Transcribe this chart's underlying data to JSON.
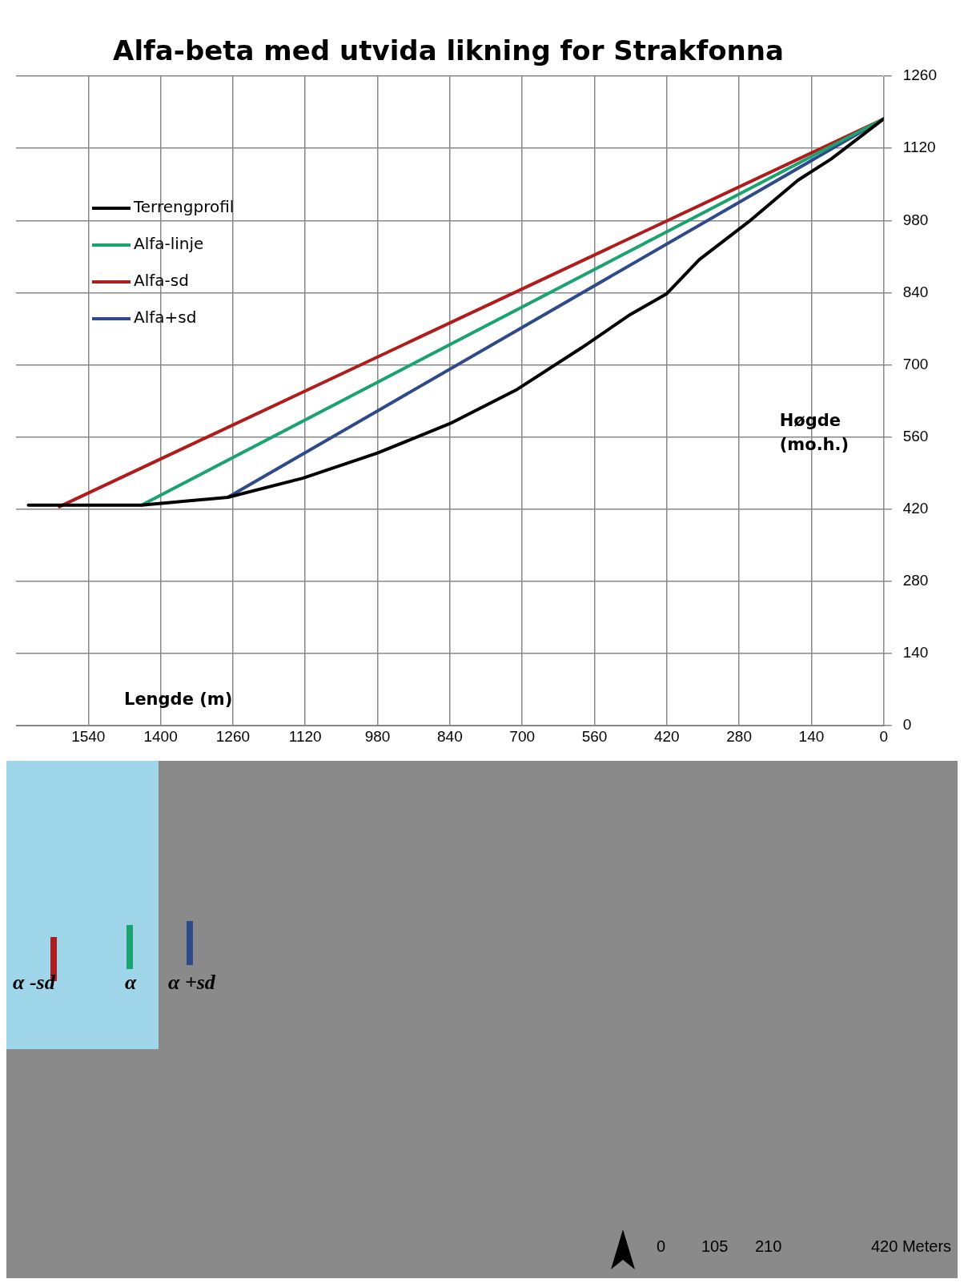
{
  "chart_data": {
    "type": "line",
    "title": "Alfa-beta med utvida likning for Strakfonna",
    "xlabel": "Lengde (m)",
    "ylabel": "Høgde (mo.h.)",
    "series": [
      {
        "name": "Terrengprofil",
        "color": "#000000",
        "x": [
          1656,
          1437,
          1270,
          1125,
          980,
          840,
          712,
          585,
          490,
          420,
          357,
          262,
          166,
          102,
          38,
          0
        ],
        "values": [
          428,
          428,
          443,
          480,
          529,
          586,
          651,
          733,
          798,
          838,
          904,
          977,
          1058,
          1099,
          1148,
          1177
        ]
      },
      {
        "name": "Alfa-linje",
        "color": "#1aa36f",
        "x": [
          1437,
          0
        ],
        "values": [
          428,
          1177
        ]
      },
      {
        "name": "Alfa-sd",
        "color": "#b01c1c",
        "x": [
          1596,
          0
        ],
        "values": [
          425,
          1177
        ]
      },
      {
        "name": "Alfa+sd",
        "color": "#2e4a8a",
        "x": [
          1270,
          0
        ],
        "values": [
          443,
          1177
        ]
      }
    ],
    "xlim": [
      1680,
      0
    ],
    "xticks": [
      1540,
      1400,
      1260,
      1120,
      980,
      840,
      700,
      560,
      420,
      280,
      140,
      0
    ],
    "ylim": [
      0,
      1260
    ],
    "yticks": [
      0,
      140,
      280,
      420,
      560,
      700,
      840,
      980,
      1120,
      1260
    ],
    "grid": true,
    "legend": "top left",
    "marker": "none",
    "line_style": "solid",
    "annotations": [
      "α -sd",
      "α",
      "α +sd",
      "0",
      "105",
      "210",
      "420 Meters"
    ]
  }
}
